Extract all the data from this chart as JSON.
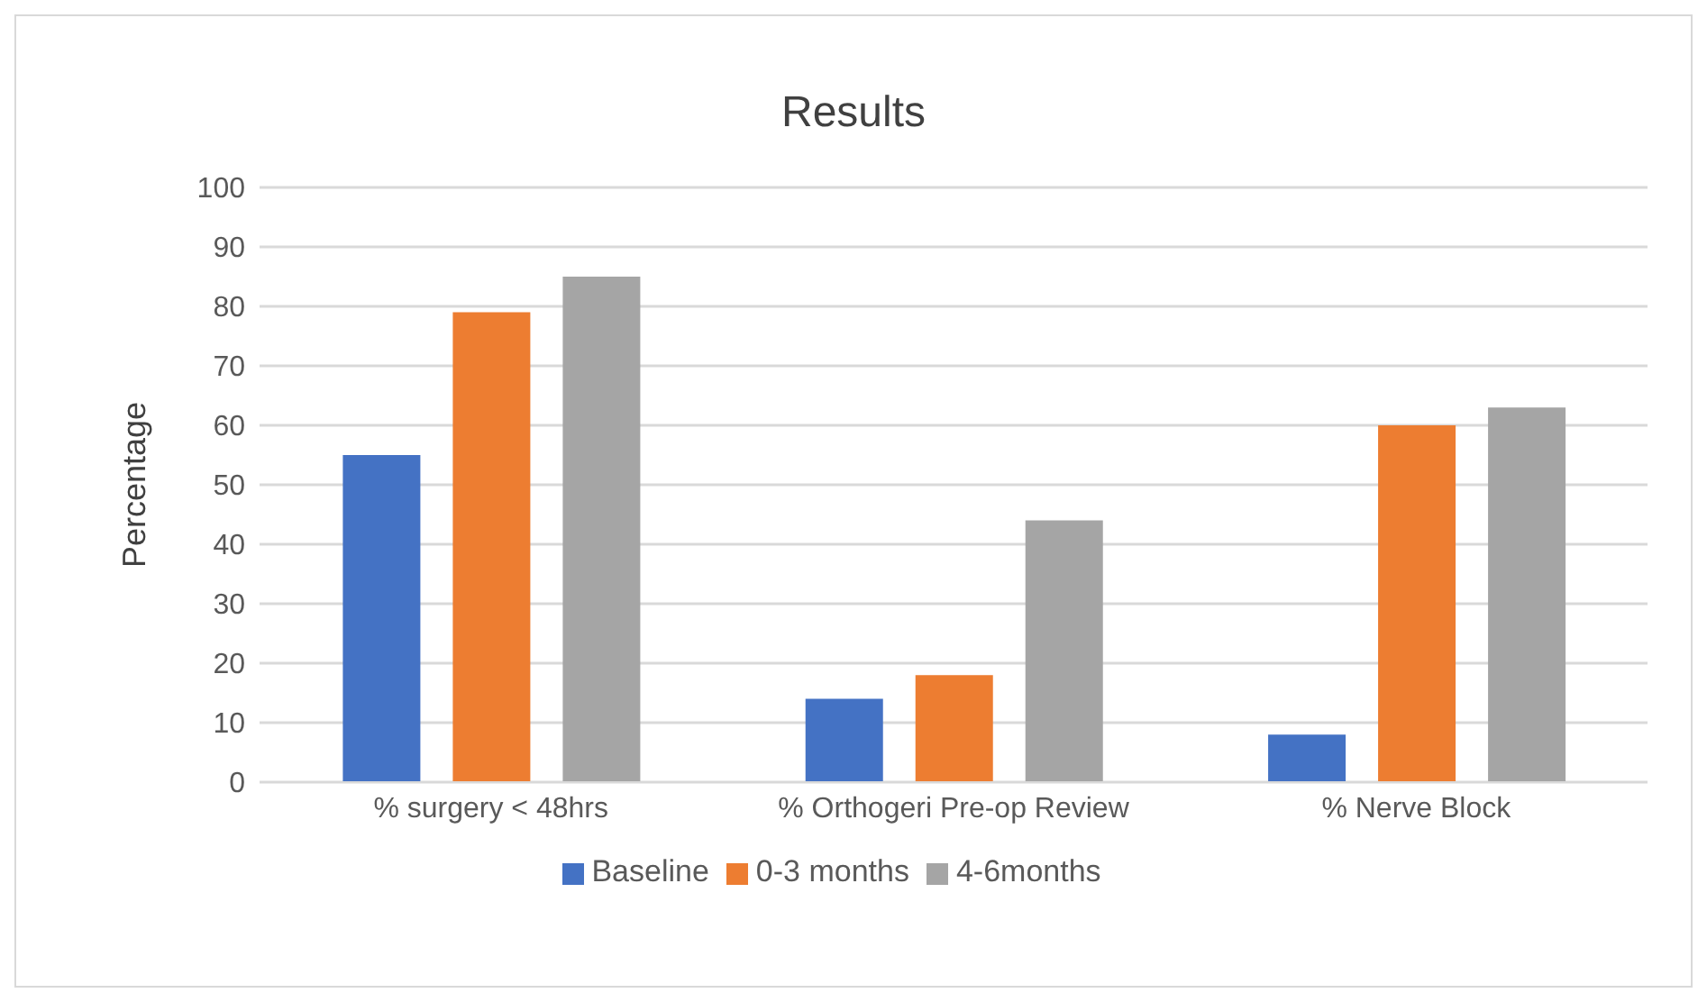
{
  "chart_data": {
    "type": "bar",
    "title": "Results",
    "ylabel": "Percentage",
    "categories": [
      "% surgery < 48hrs",
      "% Orthogeri Pre-op Review",
      "% Nerve Block"
    ],
    "series": [
      {
        "name": "Baseline",
        "color": "#4472c4",
        "values": [
          55,
          14,
          8
        ]
      },
      {
        "name": "0-3 months",
        "color": "#ed7d31",
        "values": [
          79,
          18,
          60
        ]
      },
      {
        "name": "4-6months",
        "color": "#a5a5a5",
        "values": [
          85,
          44,
          63
        ]
      }
    ],
    "ylim": [
      0,
      100
    ],
    "yticks": [
      0,
      10,
      20,
      30,
      40,
      50,
      60,
      70,
      80,
      90,
      100
    ],
    "grid": "y",
    "legend": "bottom"
  }
}
